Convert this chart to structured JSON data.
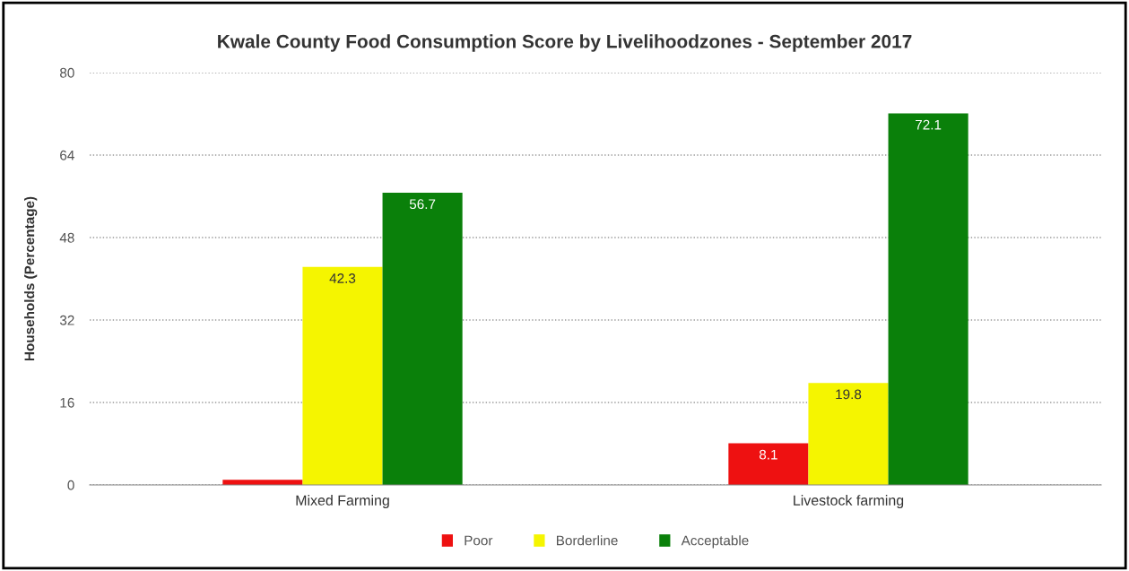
{
  "chart_data": {
    "type": "bar",
    "title": "Kwale County Food Consumption Score by Livelihoodzones - September 2017",
    "ylabel": "Households (Percentage)",
    "categories": [
      "Mixed Farming",
      "Livestock farming"
    ],
    "series": [
      {
        "name": "Poor",
        "color": "#ee1111",
        "values": [
          1.0,
          8.1
        ],
        "value_labels": [
          null,
          "8.1"
        ]
      },
      {
        "name": "Borderline",
        "color": "#f5f500",
        "values": [
          42.3,
          19.8
        ],
        "value_labels": [
          "42.3",
          "19.8"
        ]
      },
      {
        "name": "Acceptable",
        "color": "#0a800a",
        "values": [
          56.7,
          72.1
        ],
        "value_labels": [
          "56.7",
          "72.1"
        ]
      }
    ],
    "ylim": [
      0,
      80
    ],
    "yticks": [
      0,
      16,
      32,
      48,
      64,
      80
    ],
    "grid": "y",
    "legend": "bottom"
  }
}
